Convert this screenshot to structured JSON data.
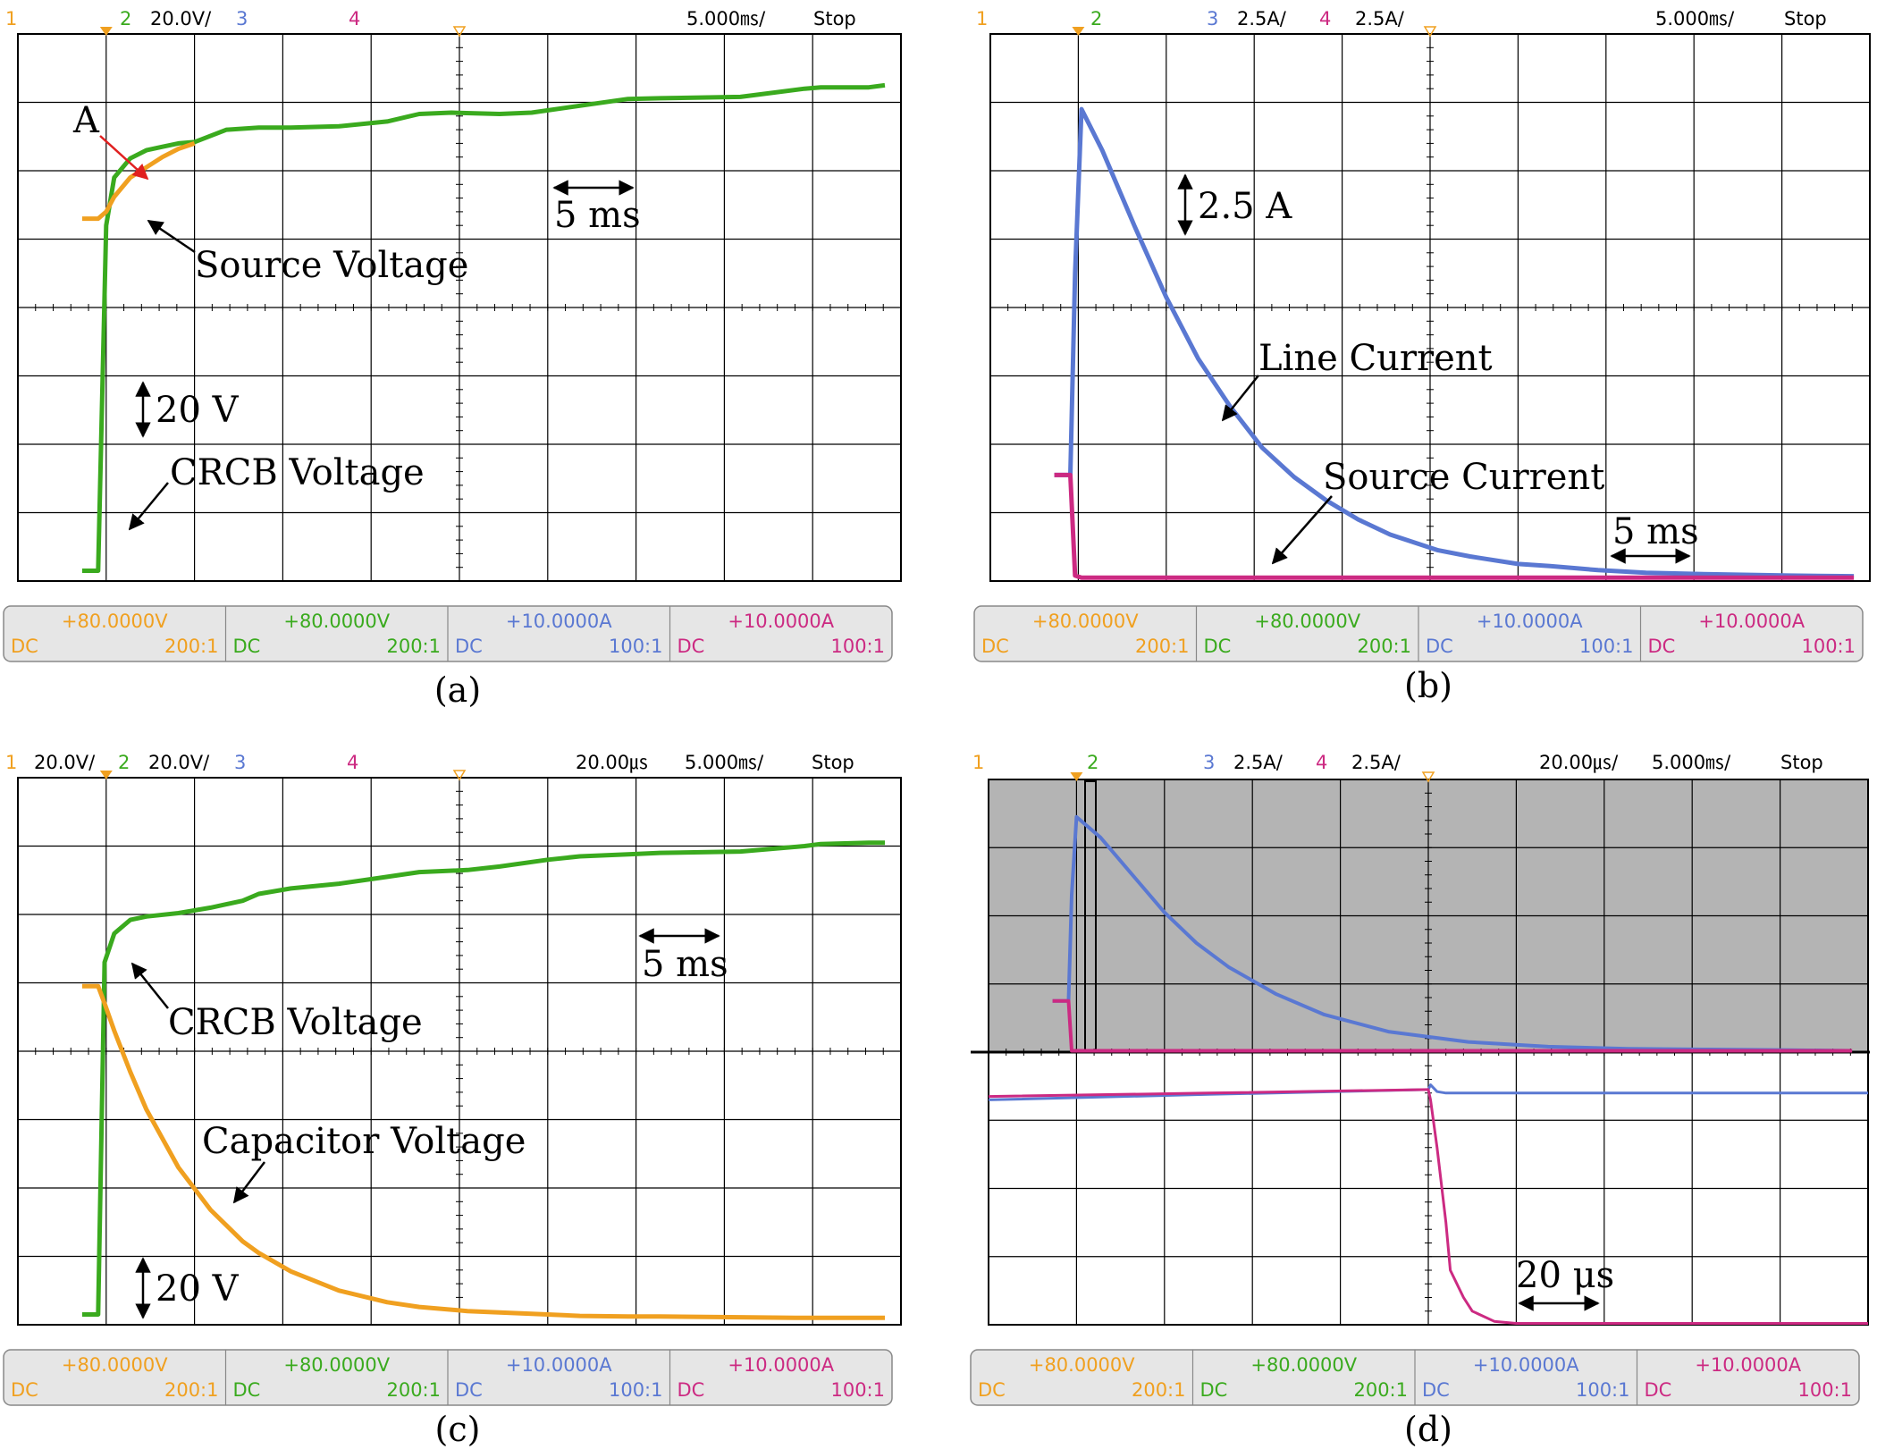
{
  "colors": {
    "ch1": "#f0a020",
    "ch2": "#3aaa1e",
    "ch3": "#5a78d2",
    "ch4": "#cc2a82",
    "grid": "#000000",
    "panel_bg": "#e6e6e6",
    "shade": "#b4b4b4",
    "arrow_a": "#e02020"
  },
  "channel_bar": [
    {
      "offset": "+80.0000V",
      "coupling": "DC",
      "probe": "200:1"
    },
    {
      "offset": "+80.0000V",
      "coupling": "DC",
      "probe": "200:1"
    },
    {
      "offset": "+10.0000A",
      "coupling": "DC",
      "probe": "100:1"
    },
    {
      "offset": "+10.0000A",
      "coupling": "DC",
      "probe": "100:1"
    }
  ],
  "chart_data": [
    {
      "id": "a",
      "type": "line",
      "caption": "(a)",
      "header": {
        "ch1": "1",
        "ch1_scale": "",
        "ch2": "2",
        "ch2_scale": "20.0V/",
        "ch3": "3",
        "ch3_scale": "",
        "ch4": "4",
        "ch4_scale": "",
        "zoom": "",
        "timebase": "5.000㎳/",
        "status": "Stop"
      },
      "x": [
        -1,
        0,
        0.5,
        1,
        2,
        3,
        4,
        5,
        6,
        8,
        10,
        12,
        15,
        18,
        20,
        22,
        25,
        27,
        30,
        33,
        35,
        40,
        44,
        45,
        48,
        49
      ],
      "xlim": [
        -5,
        50
      ],
      "ylim": [
        0,
        8
      ],
      "series": [
        {
          "name": "CRCB Voltage",
          "channel": 2,
          "values": [
            0.15,
            0.15,
            5.2,
            5.9,
            6.18,
            6.3,
            6.35,
            6.4,
            6.42,
            6.6,
            6.63,
            6.63,
            6.65,
            6.72,
            6.83,
            6.85,
            6.83,
            6.85,
            6.95,
            7.05,
            7.06,
            7.08,
            7.2,
            7.22,
            7.22,
            7.25
          ]
        },
        {
          "name": "Source Voltage",
          "channel": 1,
          "values": [
            5.3,
            5.3,
            5.4,
            5.62,
            5.9,
            6.05,
            6.2,
            6.32,
            6.4,
            null,
            null,
            null,
            null,
            null,
            null,
            null,
            null,
            null,
            null,
            null,
            null,
            null,
            null,
            null,
            null,
            null
          ]
        }
      ],
      "annotations": [
        {
          "id": "A",
          "text": "A",
          "color": "arrow_a"
        },
        {
          "id": "source",
          "text": "Source Voltage"
        },
        {
          "id": "crcb",
          "text": "CRCB Voltage"
        },
        {
          "id": "scale",
          "text": "20 V"
        },
        {
          "id": "time",
          "text": "5 ms"
        }
      ]
    },
    {
      "id": "b",
      "type": "line",
      "caption": "(b)",
      "header": {
        "ch1": "1",
        "ch1_scale": "",
        "ch2": "2",
        "ch2_scale": "",
        "ch3": "3",
        "ch3_scale": "2.5A/",
        "ch4": "4",
        "ch4_scale": "2.5A/",
        "zoom": "",
        "timebase": "5.000㎳/",
        "status": "Stop"
      },
      "x": [
        -1,
        0,
        0.3,
        0.7,
        2,
        4,
        6,
        8,
        10,
        12,
        14,
        16,
        18,
        20,
        23,
        25,
        28,
        30,
        33,
        36,
        40,
        45,
        49
      ],
      "xlim": [
        -5,
        50
      ],
      "ylim": [
        0,
        8
      ],
      "series": [
        {
          "name": "Line Current",
          "channel": 3,
          "values": [
            1.55,
            1.55,
            4.5,
            6.9,
            6.3,
            5.2,
            4.15,
            3.25,
            2.55,
            1.95,
            1.52,
            1.18,
            0.9,
            0.68,
            0.45,
            0.36,
            0.25,
            0.22,
            0.16,
            0.12,
            0.1,
            0.08,
            0.07
          ]
        },
        {
          "name": "Source Current",
          "channel": 4,
          "values": [
            1.55,
            1.55,
            0.08,
            0.05,
            0.05,
            0.05,
            0.05,
            0.05,
            0.05,
            0.05,
            0.05,
            0.05,
            0.05,
            0.05,
            0.05,
            0.05,
            0.05,
            0.05,
            0.05,
            0.05,
            0.05,
            0.05,
            0.05
          ]
        }
      ],
      "annotations": [
        {
          "id": "scale",
          "text": "2.5 A"
        },
        {
          "id": "line",
          "text": "Line Current"
        },
        {
          "id": "source",
          "text": "Source Current"
        },
        {
          "id": "time",
          "text": "5 ms"
        }
      ]
    },
    {
      "id": "c",
      "type": "line",
      "caption": "(c)",
      "header": {
        "ch1": "1",
        "ch1_scale": "20.0V/",
        "ch2": "2",
        "ch2_scale": "20.0V/",
        "ch3": "3",
        "ch3_scale": "",
        "ch4": "4",
        "ch4_scale": "",
        "zoom": "20.00㎲",
        "timebase": "5.000㎳/",
        "status": "Stop"
      },
      "x": [
        -1,
        0,
        0.4,
        1,
        2,
        3,
        5,
        7,
        9,
        10,
        12,
        15,
        18,
        20,
        23,
        25,
        28,
        30,
        33,
        35,
        40,
        44,
        45,
        48,
        49
      ],
      "xlim": [
        -5,
        50
      ],
      "ylim": [
        0,
        8
      ],
      "series": [
        {
          "name": "CRCB Voltage",
          "channel": 2,
          "values": [
            0.15,
            0.15,
            5.3,
            5.72,
            5.92,
            5.97,
            6.02,
            6.1,
            6.2,
            6.3,
            6.38,
            6.45,
            6.55,
            6.62,
            6.65,
            6.7,
            6.8,
            6.85,
            6.88,
            6.9,
            6.92,
            7.0,
            7.03,
            7.05,
            7.05
          ]
        },
        {
          "name": "Capacitor Voltage",
          "channel": 1,
          "values": [
            4.95,
            4.95,
            4.7,
            4.3,
            3.7,
            3.15,
            2.3,
            1.68,
            1.22,
            1.05,
            0.78,
            0.5,
            0.33,
            0.26,
            0.2,
            0.18,
            0.15,
            0.13,
            0.12,
            0.12,
            0.11,
            0.1,
            0.1,
            0.1,
            0.1
          ]
        }
      ],
      "annotations": [
        {
          "id": "crcb",
          "text": "CRCB Voltage"
        },
        {
          "id": "cap",
          "text": "Capacitor Voltage"
        },
        {
          "id": "scale",
          "text": "20 V"
        },
        {
          "id": "time",
          "text": "5 ms"
        }
      ]
    },
    {
      "id": "d",
      "type": "line",
      "caption": "(d)",
      "header": {
        "ch1": "1",
        "ch1_scale": "",
        "ch2": "2",
        "ch2_scale": "",
        "ch3": "3",
        "ch3_scale": "2.5A/",
        "ch4": "4",
        "ch4_scale": "2.5A/",
        "zoom": "20.00㎲/",
        "timebase": "5.000㎳/",
        "status": "Stop"
      },
      "overview": {
        "x": [
          -1,
          0,
          0.2,
          0.5,
          2,
          4,
          6,
          8,
          10,
          13,
          16,
          20,
          25,
          30,
          35,
          40,
          45,
          49
        ],
        "xlim": [
          -5,
          50
        ],
        "ylim": [
          0,
          4
        ],
        "series": [
          {
            "name": "Line Current",
            "channel": 3,
            "values": [
              0.75,
              0.75,
              2.3,
              3.45,
              3.15,
              2.6,
              2.05,
              1.6,
              1.25,
              0.85,
              0.55,
              0.3,
              0.15,
              0.08,
              0.05,
              0.04,
              0.03,
              0.02
            ]
          },
          {
            "name": "Source Current",
            "channel": 4,
            "values": [
              0.75,
              0.75,
              0.02,
              0.02,
              0.02,
              0.02,
              0.02,
              0.02,
              0.02,
              0.02,
              0.02,
              0.02,
              0.02,
              0.02,
              0.02,
              0.02,
              0.02,
              0.02
            ]
          }
        ]
      },
      "zoomed": {
        "x": [
          -100,
          -50,
          0,
          0.5,
          2,
          4,
          5,
          8,
          10,
          15,
          20,
          40,
          60,
          80,
          100
        ],
        "xlim": [
          -100,
          100
        ],
        "ylim": [
          0,
          4
        ],
        "series": [
          {
            "name": "Line Current",
            "channel": 3,
            "values": [
              3.3,
              3.38,
              3.45,
              3.52,
              3.42,
              3.4,
              3.4,
              3.4,
              3.4,
              3.4,
              3.4,
              3.4,
              3.4,
              3.4,
              3.4
            ]
          },
          {
            "name": "Source Current",
            "channel": 4,
            "values": [
              3.35,
              3.4,
              3.45,
              3.3,
              2.6,
              1.5,
              0.8,
              0.4,
              0.2,
              0.05,
              0.02,
              0.02,
              0.02,
              0.02,
              0.02
            ]
          }
        ]
      },
      "annotations": [
        {
          "id": "time",
          "text": "20 μs"
        }
      ]
    }
  ]
}
